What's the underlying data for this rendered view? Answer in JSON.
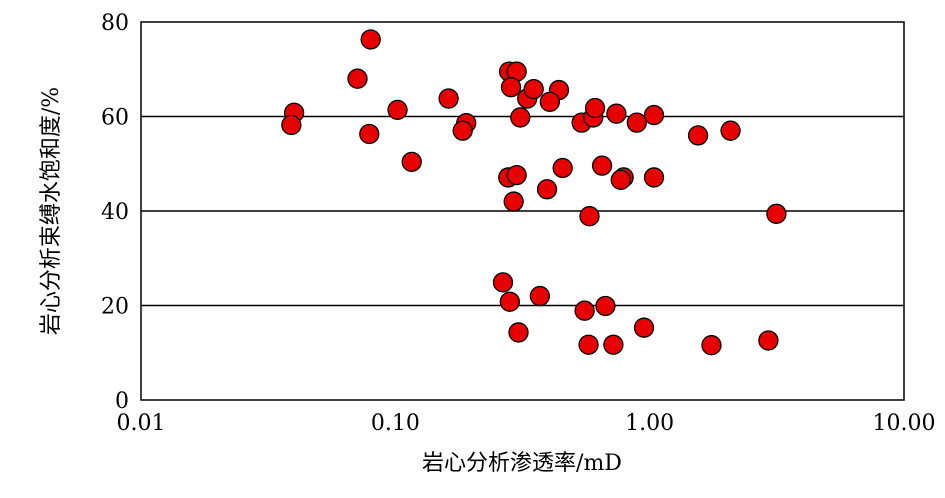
{
  "chart_data": {
    "type": "scatter",
    "xlabel": "岩心分析渗透率/mD",
    "ylabel": "岩心分析束缚水饱和度/%",
    "x_scale": "log",
    "xlim": [
      0.01,
      10
    ],
    "ylim": [
      0,
      80
    ],
    "x_ticks": [
      0.01,
      0.1,
      1,
      10
    ],
    "x_tick_labels": [
      "0.01",
      "0.10",
      "1.00",
      "10.00"
    ],
    "y_ticks": [
      0,
      20,
      40,
      60,
      80
    ],
    "y_tick_labels": [
      "0",
      "20",
      "40",
      "60",
      "80"
    ],
    "grid": "horizontal",
    "marker_color": "#e60000",
    "series": [
      {
        "points": [
          {
            "x": 0.04,
            "y": 60.8
          },
          {
            "x": 0.039,
            "y": 58.2
          },
          {
            "x": 0.071,
            "y": 68.0
          },
          {
            "x": 0.08,
            "y": 76.3
          },
          {
            "x": 0.079,
            "y": 56.3
          },
          {
            "x": 0.102,
            "y": 61.4
          },
          {
            "x": 0.116,
            "y": 50.4
          },
          {
            "x": 0.162,
            "y": 63.8
          },
          {
            "x": 0.19,
            "y": 58.6
          },
          {
            "x": 0.184,
            "y": 57.0
          },
          {
            "x": 0.28,
            "y": 69.5
          },
          {
            "x": 0.3,
            "y": 69.5
          },
          {
            "x": 0.285,
            "y": 66.2
          },
          {
            "x": 0.33,
            "y": 63.8
          },
          {
            "x": 0.35,
            "y": 65.8
          },
          {
            "x": 0.44,
            "y": 65.6
          },
          {
            "x": 0.405,
            "y": 63.1
          },
          {
            "x": 0.31,
            "y": 59.8
          },
          {
            "x": 0.54,
            "y": 58.7
          },
          {
            "x": 0.6,
            "y": 59.8
          },
          {
            "x": 0.61,
            "y": 61.8
          },
          {
            "x": 0.74,
            "y": 60.6
          },
          {
            "x": 0.89,
            "y": 58.7
          },
          {
            "x": 1.04,
            "y": 60.3
          },
          {
            "x": 1.55,
            "y": 56.0
          },
          {
            "x": 2.08,
            "y": 57.0
          },
          {
            "x": 0.278,
            "y": 47.1
          },
          {
            "x": 0.3,
            "y": 47.6
          },
          {
            "x": 0.455,
            "y": 49.1
          },
          {
            "x": 0.65,
            "y": 49.6
          },
          {
            "x": 0.79,
            "y": 47.1
          },
          {
            "x": 0.77,
            "y": 46.6
          },
          {
            "x": 1.04,
            "y": 47.1
          },
          {
            "x": 0.395,
            "y": 44.6
          },
          {
            "x": 0.292,
            "y": 42.0
          },
          {
            "x": 0.58,
            "y": 38.9
          },
          {
            "x": 3.15,
            "y": 39.4
          },
          {
            "x": 0.265,
            "y": 24.9
          },
          {
            "x": 0.282,
            "y": 20.8
          },
          {
            "x": 0.37,
            "y": 22.0
          },
          {
            "x": 0.555,
            "y": 18.9
          },
          {
            "x": 0.67,
            "y": 19.9
          },
          {
            "x": 0.305,
            "y": 14.3
          },
          {
            "x": 0.575,
            "y": 11.7
          },
          {
            "x": 0.72,
            "y": 11.7
          },
          {
            "x": 0.95,
            "y": 15.3
          },
          {
            "x": 1.75,
            "y": 11.6
          },
          {
            "x": 2.93,
            "y": 12.6
          }
        ]
      }
    ]
  }
}
